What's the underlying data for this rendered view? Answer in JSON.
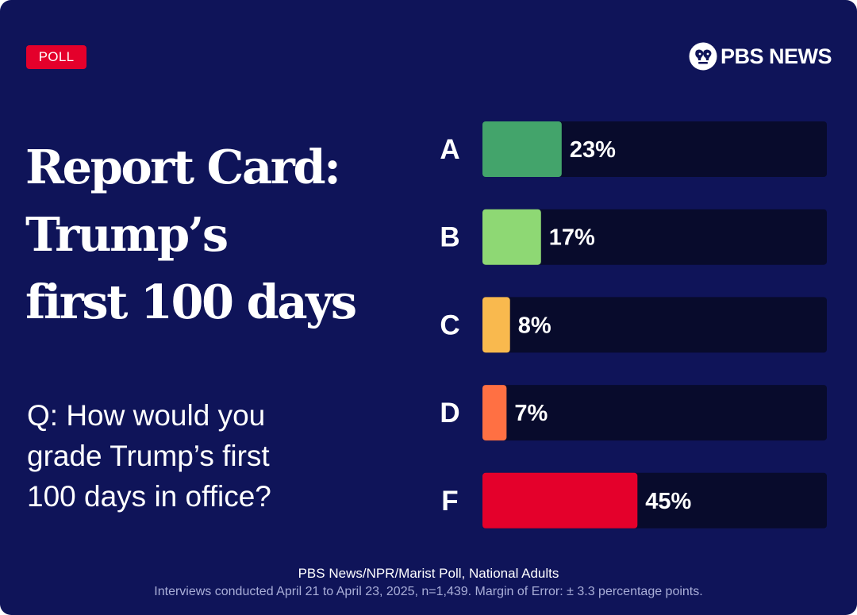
{
  "badge": "POLL",
  "brand": {
    "name": "PBS NEWS"
  },
  "title": [
    "Report Card:",
    "Trump’s",
    "first 100 days"
  ],
  "question": [
    "Q: How would you",
    "grade Trump’s first",
    "100 days in office?"
  ],
  "chart_data": {
    "type": "bar",
    "orientation": "horizontal",
    "title": "Report Card: Trump’s first 100 days",
    "categories": [
      "A",
      "B",
      "C",
      "D",
      "F"
    ],
    "values": [
      23,
      17,
      8,
      7,
      45
    ],
    "labels": [
      "23%",
      "17%",
      "8%",
      "7%",
      "45%"
    ],
    "unit": "%",
    "xlim": [
      0,
      100
    ],
    "colors": [
      "#43a46b",
      "#8ed874",
      "#f9b94e",
      "#ff7043",
      "#e4002b"
    ],
    "track_color": "#080b2c",
    "grid": false
  },
  "footer": {
    "source": "PBS News/NPR/Marist Poll, National Adults",
    "methodology": "Interviews conducted April 21 to April 23, 2025, n=1,439. Margin of Error: ± 3.3 percentage points."
  }
}
